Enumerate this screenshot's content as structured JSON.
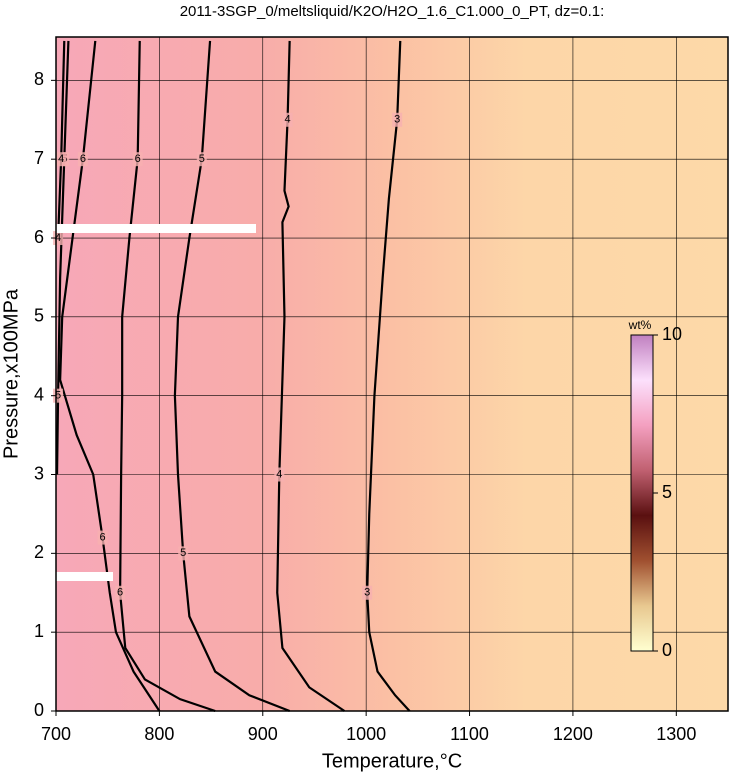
{
  "chart_data": {
    "type": "contour",
    "title": "2011-3SGP_0/meltsliquid/K2O/H2O_1.6_C1.000_0_PT, dz=0.1:",
    "xlabel": "Temperature,°C",
    "ylabel": "Pressure,x100MPa",
    "xlim": [
      700,
      1350
    ],
    "ylim": [
      0,
      8.55
    ],
    "xticks": [
      700,
      800,
      900,
      1000,
      1100,
      1200,
      1300
    ],
    "yticks": [
      0,
      1,
      2,
      3,
      4,
      5,
      6,
      7,
      8
    ],
    "grid": true,
    "line_color": "#000000",
    "contours": [
      {
        "level": 3,
        "x": [
          1033,
          1030,
          1022,
          1016,
          1008,
          1003,
          1001,
          1003,
          1011,
          1028,
          1042
        ],
        "y": [
          8.5,
          7.5,
          6.5,
          5.5,
          4,
          2.5,
          1.5,
          1,
          0.5,
          0.2,
          0
        ]
      },
      {
        "level": 4,
        "x": [
          926,
          924,
          921,
          925,
          919,
          921,
          916,
          914,
          919,
          945,
          979
        ],
        "y": [
          8.5,
          7.5,
          6.6,
          6.4,
          6.2,
          5,
          3,
          1.5,
          0.8,
          0.3,
          0
        ]
      },
      {
        "level": 5,
        "x": [
          849,
          841,
          829,
          818,
          815,
          818,
          823,
          829,
          854,
          887,
          926
        ],
        "y": [
          8.5,
          7,
          6,
          5,
          4,
          3,
          2,
          1.2,
          0.5,
          0.2,
          0
        ]
      },
      {
        "level": 6,
        "x": [
          781,
          779,
          771,
          764,
          764,
          763,
          762,
          767,
          786,
          820,
          854
        ],
        "y": [
          8.5,
          7,
          6,
          5,
          4,
          3,
          1.5,
          0.8,
          0.4,
          0.15,
          0
        ]
      },
      {
        "level": 6,
        "x": [
          738,
          726,
          716,
          706,
          704,
          720,
          736,
          745,
          752,
          758,
          775,
          790,
          800
        ],
        "y": [
          8.5,
          7,
          6,
          5,
          4.2,
          3.5,
          3,
          2.2,
          1.5,
          1,
          0.5,
          0.2,
          0
        ]
      },
      {
        "level": 5,
        "x": [
          712,
          708,
          704,
          702,
          701
        ],
        "y": [
          8.5,
          7,
          5.5,
          4,
          3
        ]
      },
      {
        "level": 4,
        "x": [
          708,
          705,
          702
        ],
        "y": [
          8.5,
          7,
          6
        ]
      }
    ],
    "colorbar": {
      "label": "wt%",
      "lim": [
        0,
        10
      ],
      "ticks": [
        0,
        5,
        10
      ],
      "colors": [
        "#ffffd0",
        "#e8c890",
        "#a05030",
        "#5a1010",
        "#c06070",
        "#f4a0c0",
        "#fce0fc",
        "#c080c0"
      ]
    }
  }
}
